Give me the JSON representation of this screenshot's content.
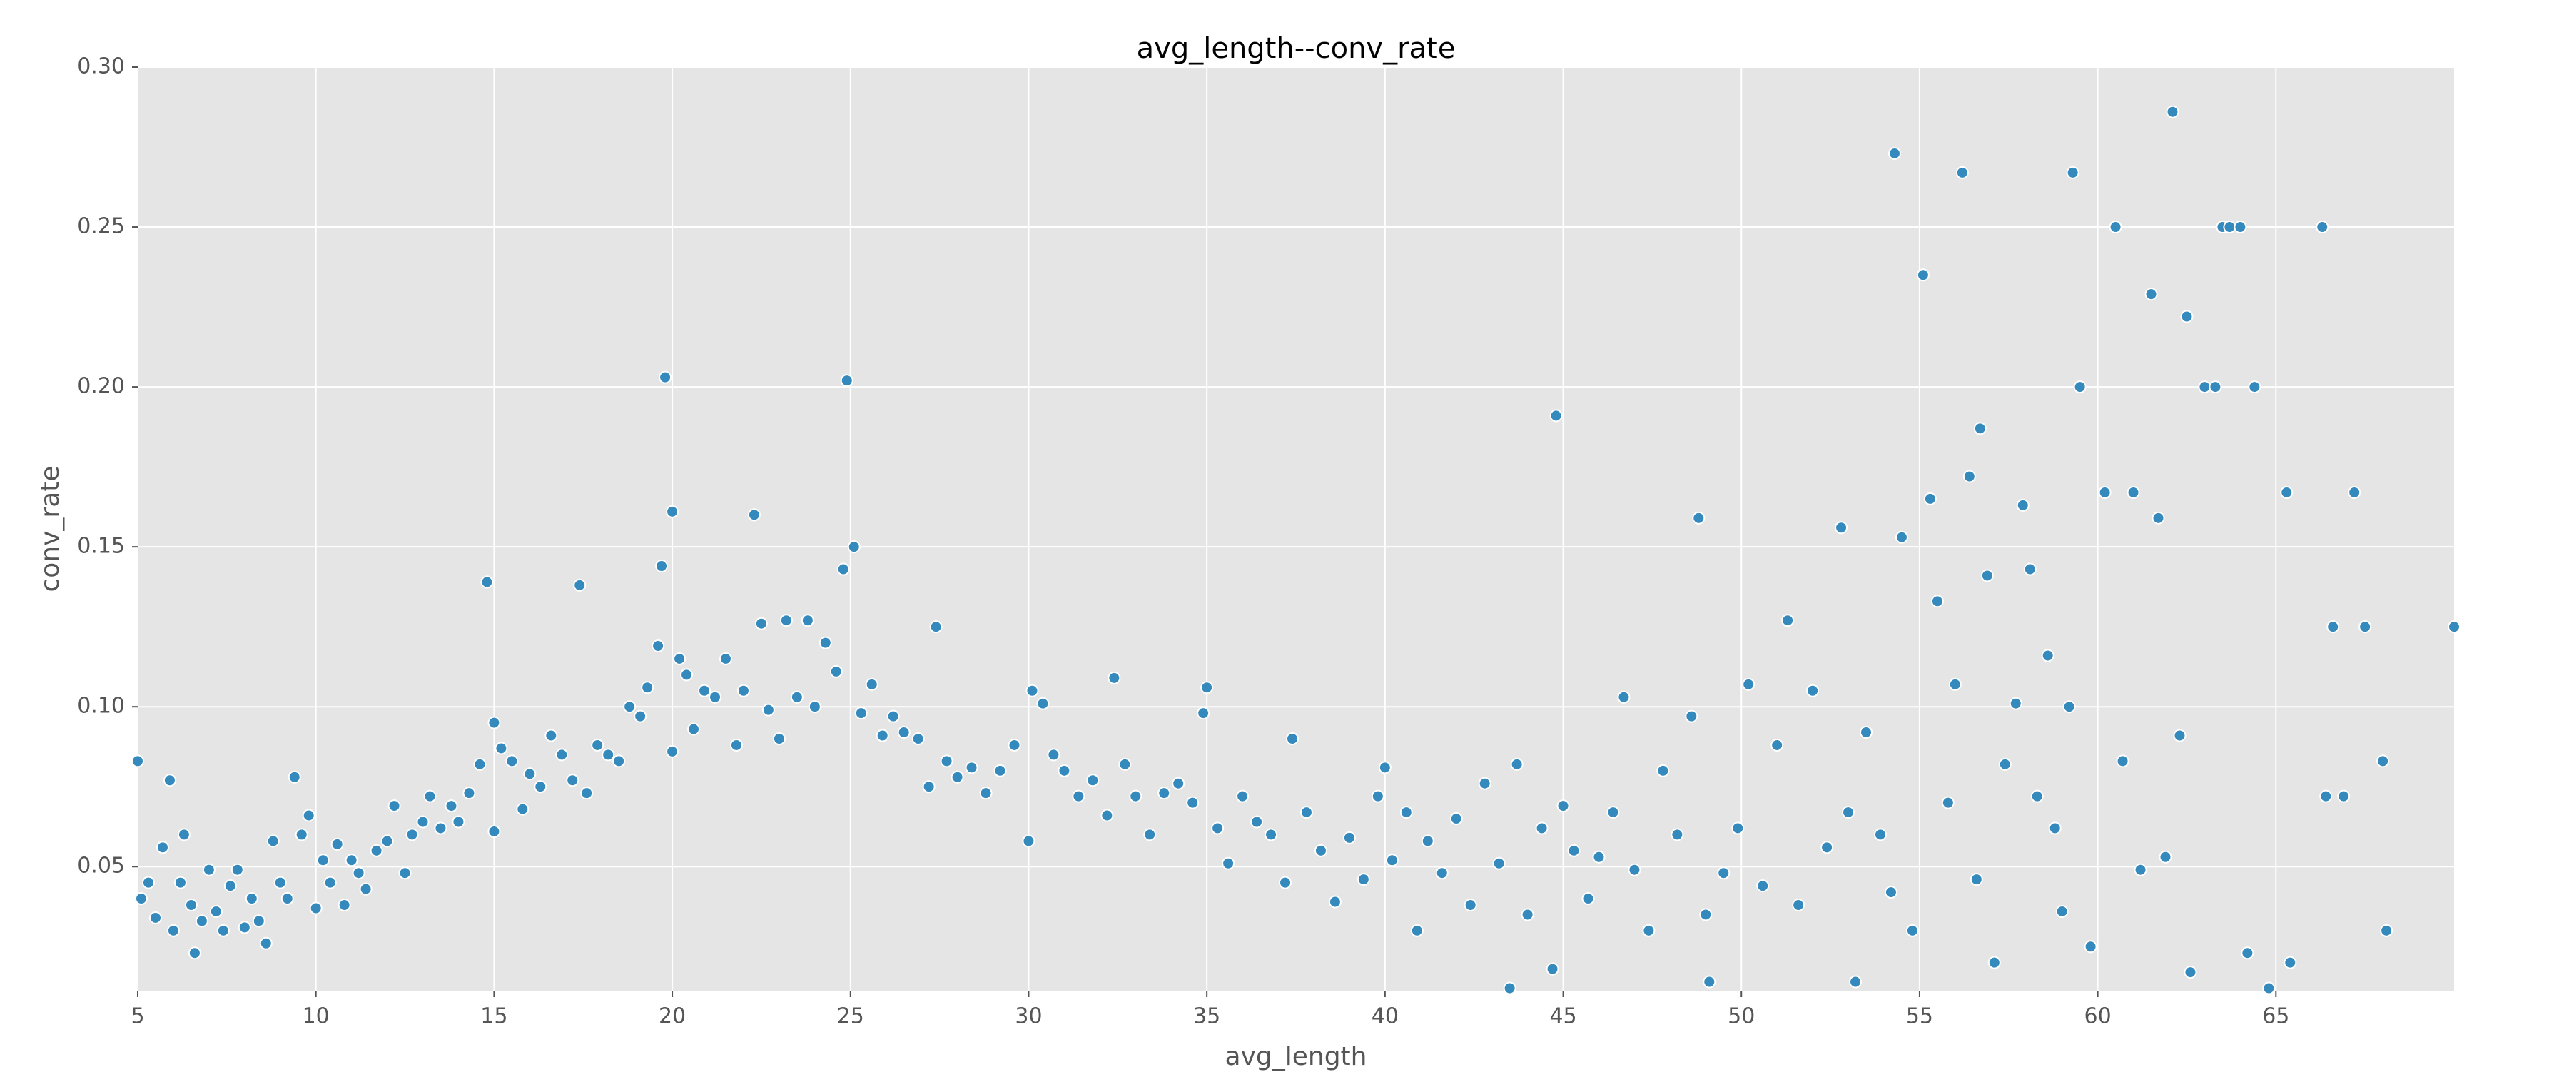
{
  "chart_data": {
    "type": "scatter",
    "title": "avg_length--conv_rate",
    "xlabel": "avg_length",
    "ylabel": "conv_rate",
    "color": "#348abd",
    "grid": true,
    "xlim": [
      5,
      70
    ],
    "ylim": [
      0.011,
      0.3
    ],
    "xticks": [
      5,
      10,
      15,
      20,
      25,
      30,
      35,
      40,
      45,
      50,
      55,
      60,
      65
    ],
    "yticks": [
      0.05,
      {
        "value": 0.1,
        "label": "0.10"
      },
      0.15,
      {
        "value": 0.2,
        "label": "0.20"
      },
      0.25,
      {
        "value": 0.3,
        "label": "0.30"
      }
    ],
    "x": [
      5.0,
      5.1,
      5.3,
      5.5,
      5.7,
      5.9,
      6.0,
      6.2,
      6.3,
      6.5,
      6.6,
      6.8,
      7.0,
      7.2,
      7.4,
      7.6,
      7.8,
      8.0,
      8.2,
      8.4,
      8.6,
      8.8,
      9.0,
      9.2,
      9.4,
      9.6,
      9.8,
      10.0,
      10.2,
      10.4,
      10.6,
      10.8,
      11.0,
      11.2,
      11.4,
      11.7,
      12.0,
      12.2,
      12.5,
      12.7,
      13.0,
      13.2,
      13.5,
      13.8,
      14.0,
      14.3,
      14.6,
      14.8,
      15.0,
      15.0,
      15.2,
      15.5,
      15.8,
      16.0,
      16.3,
      16.6,
      16.9,
      17.2,
      17.4,
      17.6,
      17.9,
      18.2,
      18.5,
      18.8,
      19.1,
      19.3,
      19.6,
      19.7,
      19.8,
      20.0,
      20.0,
      20.2,
      20.4,
      20.6,
      20.9,
      21.2,
      21.5,
      21.8,
      22.0,
      22.3,
      22.5,
      22.7,
      23.0,
      23.2,
      23.5,
      23.8,
      24.0,
      24.3,
      24.6,
      24.8,
      24.9,
      25.1,
      25.3,
      25.6,
      25.9,
      26.2,
      26.5,
      26.9,
      27.2,
      27.4,
      27.7,
      28.0,
      28.4,
      28.8,
      29.2,
      29.6,
      30.0,
      30.1,
      30.4,
      30.7,
      31.0,
      31.4,
      31.8,
      32.2,
      32.4,
      32.7,
      33.0,
      33.4,
      33.8,
      34.2,
      34.6,
      34.9,
      35.0,
      35.3,
      35.6,
      36.0,
      36.4,
      36.8,
      37.2,
      37.4,
      37.8,
      38.2,
      38.6,
      39.0,
      39.4,
      39.8,
      40.0,
      40.2,
      40.6,
      40.9,
      41.2,
      41.6,
      42.0,
      42.4,
      42.8,
      43.2,
      43.5,
      43.7,
      44.0,
      44.4,
      44.7,
      44.8,
      45.0,
      45.3,
      45.7,
      46.0,
      46.4,
      46.7,
      47.0,
      47.4,
      47.8,
      48.2,
      48.6,
      48.8,
      49.0,
      49.1,
      49.5,
      49.9,
      50.2,
      50.6,
      51.0,
      51.3,
      51.6,
      52.0,
      52.4,
      52.8,
      53.0,
      53.2,
      53.5,
      53.9,
      54.2,
      54.3,
      54.5,
      54.8,
      55.1,
      55.3,
      55.5,
      55.8,
      56.0,
      56.2,
      56.4,
      56.6,
      56.7,
      56.9,
      57.1,
      57.4,
      57.7,
      57.9,
      58.1,
      58.3,
      58.6,
      58.8,
      59.0,
      59.2,
      59.3,
      59.5,
      59.8,
      60.2,
      60.5,
      60.7,
      61.0,
      61.2,
      61.5,
      61.7,
      61.9,
      62.1,
      62.3,
      62.5,
      62.6,
      63.0,
      63.3,
      63.5,
      63.7,
      64.0,
      64.2,
      64.4,
      64.8,
      65.3,
      65.4,
      66.3,
      66.4,
      66.6,
      66.9,
      67.2,
      67.5,
      68.0,
      68.1,
      70.0
    ],
    "y": [
      0.083,
      0.04,
      0.045,
      0.034,
      0.056,
      0.077,
      0.03,
      0.045,
      0.06,
      0.038,
      0.023,
      0.033,
      0.049,
      0.036,
      0.03,
      0.044,
      0.049,
      0.031,
      0.04,
      0.033,
      0.026,
      0.058,
      0.045,
      0.04,
      0.078,
      0.06,
      0.066,
      0.037,
      0.052,
      0.045,
      0.057,
      0.038,
      0.052,
      0.048,
      0.043,
      0.055,
      0.058,
      0.069,
      0.048,
      0.06,
      0.064,
      0.072,
      0.062,
      0.069,
      0.064,
      0.073,
      0.082,
      0.139,
      0.061,
      0.095,
      0.087,
      0.083,
      0.068,
      0.079,
      0.075,
      0.091,
      0.085,
      0.077,
      0.138,
      0.073,
      0.088,
      0.085,
      0.083,
      0.1,
      0.097,
      0.106,
      0.119,
      0.144,
      0.203,
      0.161,
      0.086,
      0.115,
      0.11,
      0.093,
      0.105,
      0.103,
      0.115,
      0.088,
      0.105,
      0.16,
      0.126,
      0.099,
      0.09,
      0.127,
      0.103,
      0.127,
      0.1,
      0.12,
      0.111,
      0.143,
      0.202,
      0.15,
      0.098,
      0.107,
      0.091,
      0.097,
      0.092,
      0.09,
      0.075,
      0.125,
      0.083,
      0.078,
      0.081,
      0.073,
      0.08,
      0.088,
      0.058,
      0.105,
      0.101,
      0.085,
      0.08,
      0.072,
      0.077,
      0.066,
      0.109,
      0.082,
      0.072,
      0.06,
      0.073,
      0.076,
      0.07,
      0.098,
      0.106,
      0.062,
      0.051,
      0.072,
      0.064,
      0.06,
      0.045,
      0.09,
      0.067,
      0.055,
      0.039,
      0.059,
      0.046,
      0.072,
      0.081,
      0.052,
      0.067,
      0.03,
      0.058,
      0.048,
      0.065,
      0.038,
      0.076,
      0.051,
      0.012,
      0.082,
      0.035,
      0.062,
      0.018,
      0.191,
      0.069,
      0.055,
      0.04,
      0.053,
      0.067,
      0.103,
      0.049,
      0.03,
      0.08,
      0.06,
      0.097,
      0.159,
      0.035,
      0.014,
      0.048,
      0.062,
      0.107,
      0.044,
      0.088,
      0.127,
      0.038,
      0.105,
      0.056,
      0.156,
      0.067,
      0.014,
      0.092,
      0.06,
      0.042,
      0.273,
      0.153,
      0.03,
      0.235,
      0.165,
      0.133,
      0.07,
      0.107,
      0.267,
      0.172,
      0.046,
      0.187,
      0.141,
      0.02,
      0.082,
      0.101,
      0.163,
      0.143,
      0.072,
      0.116,
      0.062,
      0.036,
      0.1,
      0.267,
      0.2,
      0.025,
      0.167,
      0.25,
      0.083,
      0.167,
      0.049,
      0.229,
      0.159,
      0.053,
      0.286,
      0.091,
      0.222,
      0.017,
      0.2,
      0.2,
      0.25,
      0.25,
      0.25,
      0.023,
      0.2,
      0.012,
      0.167,
      0.02,
      0.25,
      0.072,
      0.125,
      0.072,
      0.167,
      0.125,
      0.083,
      0.03,
      0.125
    ]
  }
}
